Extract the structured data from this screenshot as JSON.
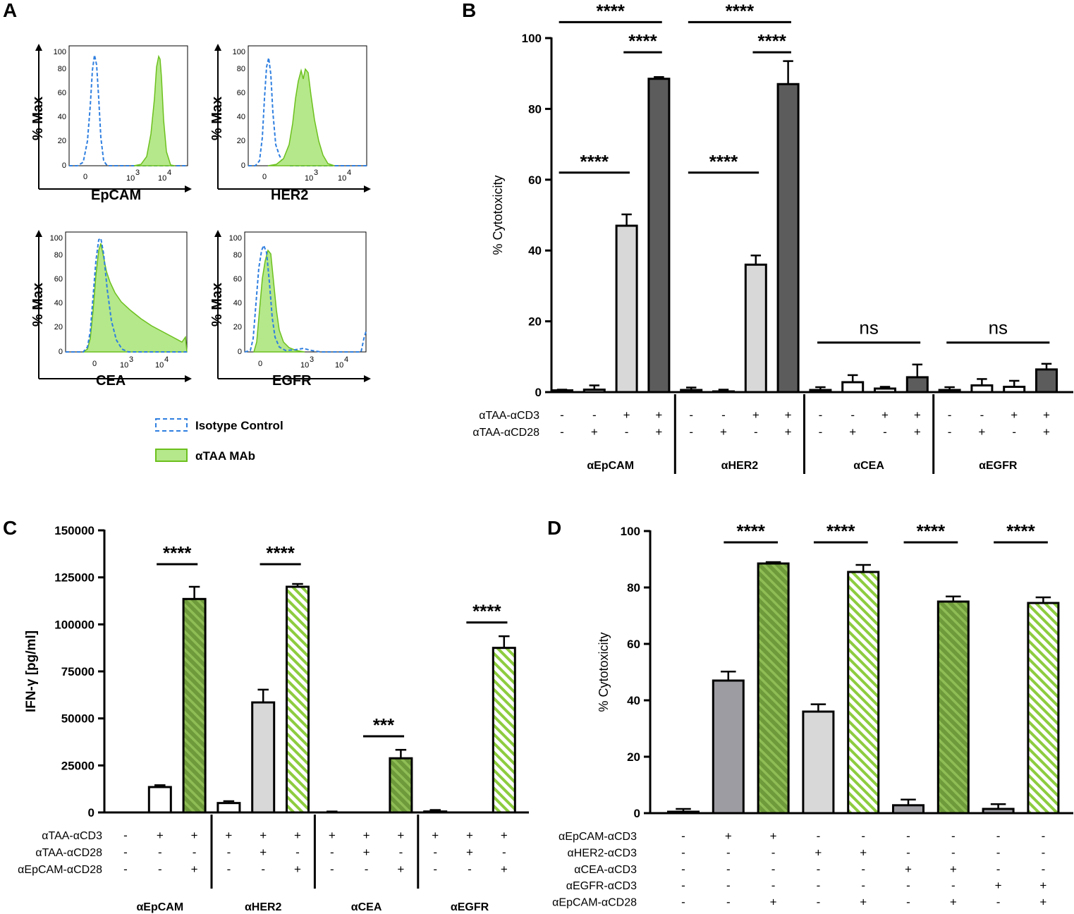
{
  "colors": {
    "isotype": "#2f7fe0",
    "mab_fill": "#b5e88a",
    "mab_line": "#6cc01e",
    "white": "#ffffff",
    "light_gray": "#d8d8d8",
    "dark_gray": "#5c5c5c",
    "mid_gray": "#9c9ca2",
    "green_dark": "#6e9a3b",
    "green_light": "#8dcc3f"
  },
  "panel_A": {
    "letter": "A",
    "ylabel": "% Max",
    "yticks": [
      "0",
      "20",
      "40",
      "60",
      "80",
      "100"
    ],
    "histograms": [
      {
        "name": "EpCAM",
        "xlabel": "EpCAM",
        "xticks": [
          "0",
          "10",
          "10"
        ],
        "xexp": [
          "",
          "3",
          "4"
        ]
      },
      {
        "name": "HER2",
        "xlabel": "HER2",
        "xticks": [
          "0",
          "10",
          "10"
        ],
        "xexp": [
          "",
          "3",
          "4"
        ]
      },
      {
        "name": "CEA",
        "xlabel": "CEA",
        "xticks": [
          "0",
          "10",
          "10"
        ],
        "xexp": [
          "",
          "3",
          "4"
        ]
      },
      {
        "name": "EGFR",
        "xlabel": "EGFR",
        "xticks": [
          "0",
          "10",
          "10"
        ],
        "xexp": [
          "",
          "3",
          "4"
        ]
      }
    ],
    "legend": [
      {
        "label": "Isotype Control",
        "style": "dashed"
      },
      {
        "label": "αTAA MAb",
        "style": "filled"
      }
    ]
  },
  "chart_data": [
    {
      "panel": "B",
      "type": "bar",
      "ylabel": "% Cytotoxicity",
      "ylim": [
        0,
        100
      ],
      "yticks": [
        0,
        20,
        40,
        60,
        80,
        100
      ],
      "values": [
        0.5,
        0.7,
        47,
        88.5,
        0.6,
        0.2,
        36,
        87,
        0.6,
        2.8,
        1,
        4.2,
        0.6,
        1.9,
        1.5,
        6.4
      ],
      "errors": [
        0.2,
        1.2,
        3.2,
        0.5,
        0.7,
        0.5,
        2.6,
        6.5,
        0.8,
        2.0,
        0.5,
        3.6,
        0.8,
        1.8,
        1.7,
        1.6
      ],
      "fills": [
        "white",
        "white",
        "light_gray",
        "dark_gray",
        "white",
        "white",
        "light_gray",
        "dark_gray",
        "white",
        "white",
        "white",
        "dark_gray",
        "white",
        "white",
        "white",
        "dark_gray"
      ],
      "row_labels": [
        "αTAA-αCD3",
        "αTAA-αCD28"
      ],
      "rows": [
        [
          "-",
          "-",
          "+",
          "+",
          "-",
          "-",
          "+",
          "+",
          "-",
          "-",
          "+",
          "+",
          "-",
          "-",
          "+",
          "+"
        ],
        [
          "-",
          "+",
          "-",
          "+",
          "-",
          "+",
          "-",
          "+",
          "-",
          "+",
          "-",
          "+",
          "-",
          "+",
          "-",
          "+"
        ]
      ],
      "groups": [
        "αEpCAM",
        "αHER2",
        "αCEA",
        "αEGFR"
      ],
      "annotations": [
        {
          "label": "****",
          "from": 0,
          "to": 3,
          "y": 104.5
        },
        {
          "label": "****",
          "from": 2,
          "to": 3,
          "y": 96
        },
        {
          "label": "****",
          "from": 0,
          "to": 2,
          "y": 62
        },
        {
          "label": "****",
          "from": 4,
          "to": 7,
          "y": 104.5
        },
        {
          "label": "****",
          "from": 6,
          "to": 7,
          "y": 96
        },
        {
          "label": "****",
          "from": 4,
          "to": 6,
          "y": 62
        },
        {
          "label": "ns",
          "from": 8,
          "to": 11,
          "y": 14
        },
        {
          "label": "ns",
          "from": 12,
          "to": 15,
          "y": 14
        }
      ]
    },
    {
      "panel": "C",
      "type": "bar",
      "ylabel": "IFN-γ [pg/ml]",
      "ylim": [
        0,
        150000
      ],
      "yticks": [
        0,
        25000,
        50000,
        75000,
        100000,
        125000,
        150000
      ],
      "values": [
        0,
        13500,
        113500,
        5000,
        58500,
        120000,
        0,
        0,
        28800,
        500,
        0,
        87500
      ],
      "errors": [
        0,
        1000,
        6500,
        1000,
        6800,
        1500,
        500,
        0,
        4500,
        800,
        0,
        6200
      ],
      "fills": [
        "white",
        "white",
        "green_dark_hatch",
        "white",
        "light_gray",
        "green_light_hatch",
        "white",
        "white",
        "green_dark_hatch",
        "white",
        "white",
        "green_light_hatch"
      ],
      "row_labels": [
        "αTAA-αCD3",
        "αTAA-αCD28",
        "αEpCAM-αCD28"
      ],
      "rows": [
        [
          "-",
          "+",
          "+",
          "+",
          "+",
          "+",
          "+",
          "+",
          "+",
          "+",
          "+",
          "+"
        ],
        [
          "-",
          "-",
          "-",
          "-",
          "+",
          "-",
          "-",
          "+",
          "-",
          "-",
          "+",
          "-"
        ],
        [
          "-",
          "-",
          "+",
          "-",
          "-",
          "+",
          "-",
          "-",
          "+",
          "-",
          "-",
          "+"
        ]
      ],
      "groups": [
        "αEpCAM",
        "αHER2",
        "αCEA",
        "αEGFR"
      ],
      "annotations": [
        {
          "label": "****",
          "from": 1,
          "to": 2,
          "y": 132000
        },
        {
          "label": "****",
          "from": 4,
          "to": 5,
          "y": 132000
        },
        {
          "label": "***",
          "from": 7,
          "to": 8,
          "y": 40500
        },
        {
          "label": "****",
          "from": 10,
          "to": 11,
          "y": 101000
        }
      ]
    },
    {
      "panel": "D",
      "type": "bar",
      "ylabel": "% Cytotoxicity",
      "ylim": [
        0,
        100
      ],
      "yticks": [
        0,
        20,
        40,
        60,
        80,
        100
      ],
      "values": [
        0.5,
        47,
        88.5,
        36,
        85.5,
        2.8,
        75,
        1.5,
        74.5
      ],
      "errors": [
        1,
        3.2,
        0.5,
        2.6,
        2.5,
        2.0,
        1.8,
        1.7,
        2.0
      ],
      "fills": [
        "white",
        "mid_gray",
        "green_dark_hatch",
        "light_gray",
        "green_light_hatch",
        "mid_gray",
        "green_dark_hatch",
        "mid_gray",
        "green_light_hatch"
      ],
      "row_labels": [
        "αEpCAM-αCD3",
        "αHER2-αCD3",
        "αCEA-αCD3",
        "αEGFR-αCD3",
        "αEpCAM-αCD28"
      ],
      "rows": [
        [
          "-",
          "+",
          "+",
          "-",
          "-",
          "-",
          "-",
          "-",
          "-"
        ],
        [
          "-",
          "-",
          "-",
          "+",
          "+",
          "-",
          "-",
          "-",
          "-"
        ],
        [
          "-",
          "-",
          "-",
          "-",
          "-",
          "+",
          "+",
          "-",
          "-"
        ],
        [
          "-",
          "-",
          "-",
          "-",
          "-",
          "-",
          "-",
          "+",
          "+"
        ],
        [
          "-",
          "-",
          "+",
          "-",
          "+",
          "-",
          "+",
          "-",
          "+"
        ]
      ],
      "groups": [],
      "annotations": [
        {
          "label": "****",
          "from": 1,
          "to": 2,
          "y": 96
        },
        {
          "label": "****",
          "from": 3,
          "to": 4,
          "y": 96
        },
        {
          "label": "****",
          "from": 5,
          "to": 6,
          "y": 96
        },
        {
          "label": "****",
          "from": 7,
          "to": 8,
          "y": 96
        }
      ]
    }
  ]
}
